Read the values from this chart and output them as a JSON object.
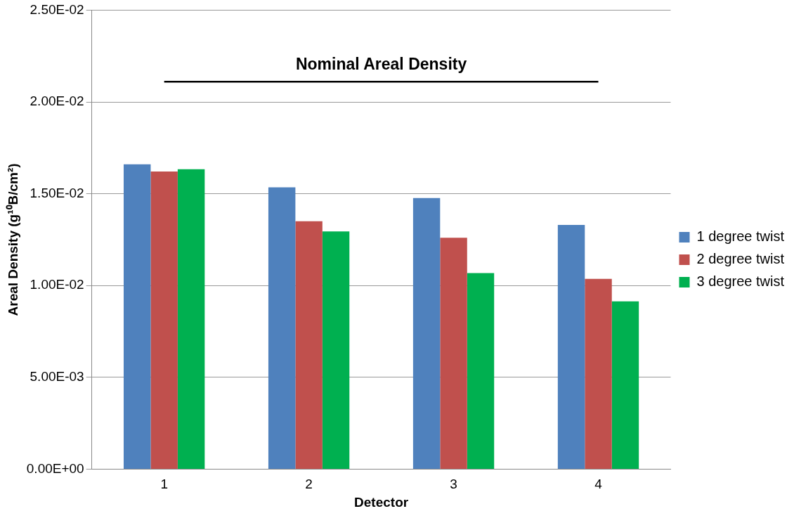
{
  "chart_data": {
    "type": "bar",
    "xlabel": "Detector",
    "ylabel": "Areal Density (g¹⁰B/cm²)",
    "categories": [
      "1",
      "2",
      "3",
      "4"
    ],
    "series": [
      {
        "name": "1 degree twist",
        "color": "#4f81bd",
        "values": [
          0.0166,
          0.01535,
          0.01476,
          0.0133
        ]
      },
      {
        "name": "2 degree twist",
        "color": "#c0504d",
        "values": [
          0.01621,
          0.0135,
          0.0126,
          0.01036
        ]
      },
      {
        "name": "3 degree twist",
        "color": "#00b050",
        "values": [
          0.01633,
          0.01295,
          0.01068,
          0.00914
        ]
      }
    ],
    "ylim": [
      0,
      0.025
    ],
    "yticks": [
      {
        "value": 0,
        "label": "0.00E+00"
      },
      {
        "value": 0.005,
        "label": "5.00E-03"
      },
      {
        "value": 0.01,
        "label": "1.00E-02"
      },
      {
        "value": 0.015,
        "label": "1.50E-02"
      },
      {
        "value": 0.02,
        "label": "2.00E-02"
      },
      {
        "value": 0.025,
        "label": "2.50E-02"
      }
    ],
    "ref_lines": [
      {
        "axis": "y",
        "value": 0.0211,
        "label": "Nominal Areal Density",
        "color": "#000000"
      }
    ],
    "grid": "y",
    "legend": "right"
  }
}
